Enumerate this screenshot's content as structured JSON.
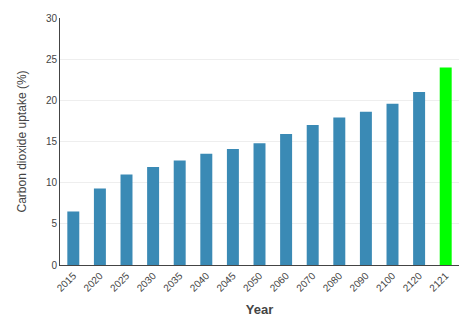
{
  "chart_data": {
    "type": "bar",
    "categories": [
      "2015",
      "2020",
      "2025",
      "2030",
      "2035",
      "2040",
      "2045",
      "2050",
      "2060",
      "2070",
      "2080",
      "2090",
      "2100",
      "2120",
      "2121"
    ],
    "values": [
      6.5,
      9.3,
      11.0,
      11.9,
      12.7,
      13.5,
      14.1,
      14.8,
      15.9,
      17.0,
      17.9,
      18.6,
      19.6,
      21.0,
      24.0
    ],
    "colors": [
      "#3a8ab5",
      "#3a8ab5",
      "#3a8ab5",
      "#3a8ab5",
      "#3a8ab5",
      "#3a8ab5",
      "#3a8ab5",
      "#3a8ab5",
      "#3a8ab5",
      "#3a8ab5",
      "#3a8ab5",
      "#3a8ab5",
      "#3a8ab5",
      "#3a8ab5",
      "#00ff00"
    ],
    "xlabel": "Year",
    "ylabel": "Carbon dioxide uptake (%)",
    "ylim": [
      0,
      30
    ],
    "yticks": [
      0,
      5,
      10,
      15,
      20,
      25,
      30
    ],
    "grid": true
  }
}
